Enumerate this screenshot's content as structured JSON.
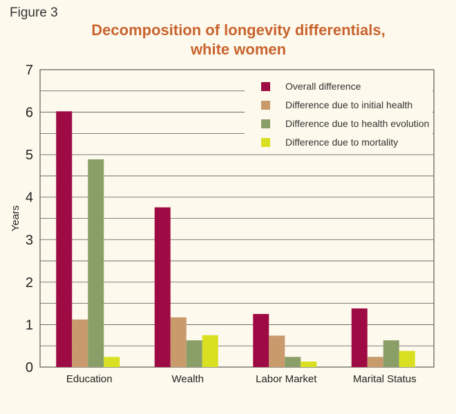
{
  "figure_label": "Figure 3",
  "chart_data": {
    "type": "bar",
    "title": [
      "Decomposition of longevity differentials,",
      "white women"
    ],
    "ylabel": "Years",
    "xlabel": "",
    "ylim": [
      0,
      7
    ],
    "yticks": [
      0,
      1,
      2,
      3,
      4,
      5,
      6,
      7
    ],
    "grid": true,
    "legend_position": "top-right",
    "categories": [
      "Education",
      "Wealth",
      "Labor Market",
      "Marital Status"
    ],
    "series": [
      {
        "name": "Overall difference",
        "color": "#9e0a43",
        "values": [
          6.02,
          3.76,
          1.25,
          1.38
        ]
      },
      {
        "name": "Difference due to initial health",
        "color": "#c89a6c",
        "values": [
          1.12,
          1.17,
          0.74,
          0.24
        ]
      },
      {
        "name": "Difference due to health evolution",
        "color": "#8a9f68",
        "values": [
          4.89,
          0.63,
          0.24,
          0.63
        ]
      },
      {
        "name": "Difference due to mortality",
        "color": "#d9e021",
        "values": [
          0.24,
          0.75,
          0.13,
          0.38
        ]
      }
    ]
  }
}
